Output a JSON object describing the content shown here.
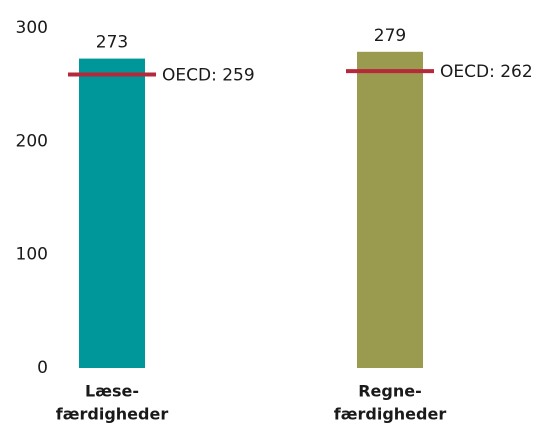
{
  "chart_data": {
    "type": "bar",
    "categories": [
      [
        "Læse-",
        "færdigheder"
      ],
      [
        "Regne-",
        "færdigheder"
      ]
    ],
    "values": [
      273,
      279
    ],
    "colors": [
      "#00979a",
      "#9a9b4f"
    ],
    "reference": {
      "values": [
        259,
        262
      ],
      "value_labels": [
        "OECD: 259",
        "OECD: 262"
      ],
      "color": "#b5293a"
    },
    "ylim": [
      0,
      300
    ],
    "yticks": [
      0,
      100,
      200,
      300
    ],
    "grid": false
  }
}
